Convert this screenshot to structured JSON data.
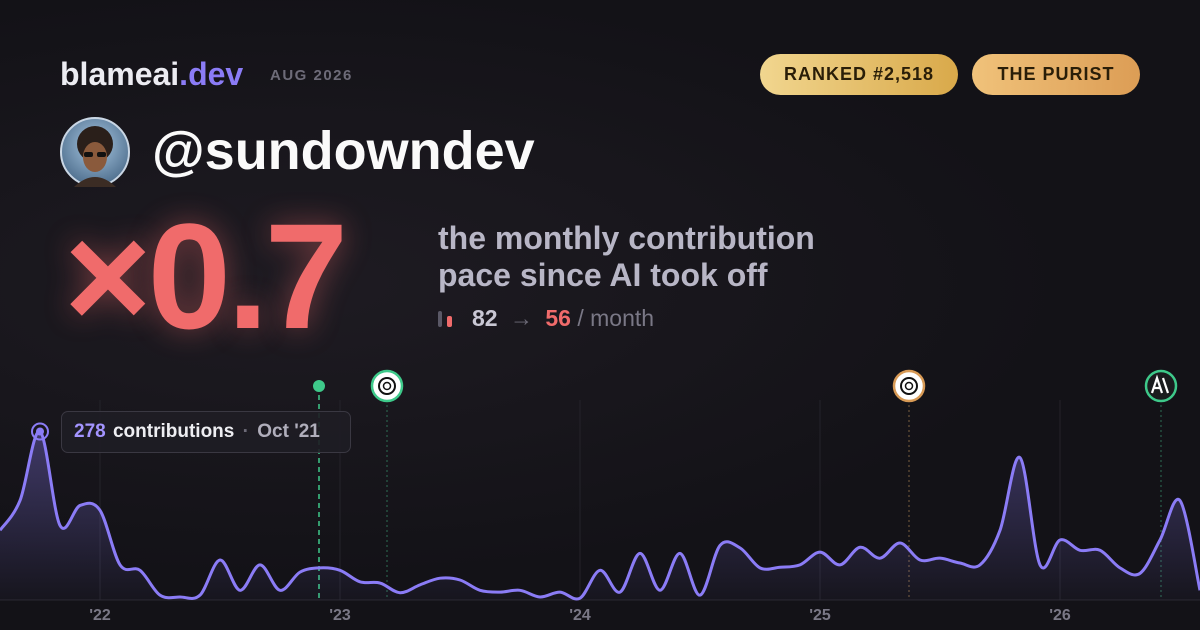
{
  "header": {
    "brand": "blameai",
    "brand_suffix": ".dev",
    "period": "AUG 2026",
    "badges": [
      "RANKED #2,518",
      "THE PURIST"
    ],
    "handle": "@sundowndev"
  },
  "stat": {
    "multiplier": "×0.7",
    "caption_lines": [
      "the monthly contribution",
      "pace since AI took off"
    ],
    "before": "82",
    "arrow": "→",
    "after": "56",
    "unit": "/ month"
  },
  "tooltip": {
    "value": "278",
    "label": "contributions",
    "separator": "·",
    "date": "Oct '21"
  },
  "chart_data": {
    "type": "line",
    "categories": [
      null,
      null,
      null,
      null,
      null,
      "'22",
      null,
      null,
      null,
      null,
      null,
      null,
      null,
      null,
      null,
      null,
      null,
      "'23",
      null,
      null,
      null,
      null,
      null,
      null,
      null,
      null,
      null,
      null,
      null,
      "'24",
      null,
      null,
      null,
      null,
      null,
      null,
      null,
      null,
      null,
      null,
      null,
      "'25",
      null,
      null,
      null,
      null,
      null,
      null,
      null,
      null,
      null,
      null,
      null,
      "'26",
      null,
      null,
      null,
      null,
      null,
      null,
      null
    ],
    "series": [
      {
        "name": "contributions",
        "color": "#8b7cf6",
        "values": [
          115,
          164,
          278,
          123,
          156,
          148,
          58,
          49,
          8,
          5,
          8,
          66,
          16,
          58,
          16,
          46,
          53,
          49,
          30,
          28,
          12,
          25,
          36,
          33,
          16,
          13,
          16,
          5,
          13,
          3,
          49,
          13,
          77,
          16,
          77,
          8,
          90,
          86,
          53,
          54,
          58,
          79,
          58,
          87,
          69,
          94,
          66,
          69,
          61,
          58,
          115,
          235,
          58,
          99,
          82,
          82,
          53,
          44,
          99,
          164,
          16
        ]
      }
    ],
    "ylim": [
      0,
      330
    ],
    "grid": true
  }
}
